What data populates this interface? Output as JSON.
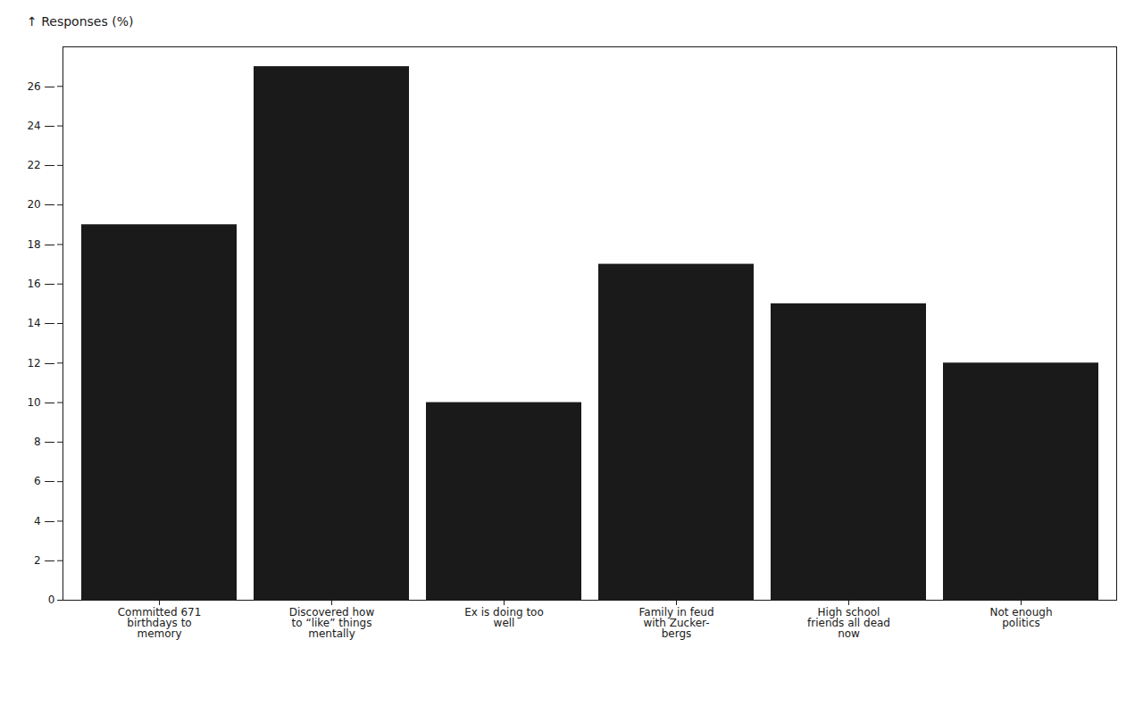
{
  "chart_data": {
    "type": "bar",
    "categories": [
      "Committed 671\nbirthdays to\nmemory",
      "Discovered how\nto “like” things\nmentally",
      "Ex is doing too\nwell",
      "Family in feud\nwith Zucker-\nbergs",
      "High school\nfriends all dead\nnow",
      "Not enough\npolitics"
    ],
    "values": [
      19,
      27,
      10,
      17,
      15,
      12
    ],
    "color": "#1a1a1a",
    "ylabel": "↑ Responses (%)",
    "ylim": [
      0,
      28
    ],
    "yticks": [
      0,
      {
        "value": 2,
        "label": "2 —"
      },
      {
        "value": 4,
        "label": "4 —"
      },
      {
        "value": 6,
        "label": "6 —"
      },
      {
        "value": 8,
        "label": "8 —"
      },
      {
        "value": 10,
        "label": "10 —"
      },
      {
        "value": 12,
        "label": "12 —"
      },
      {
        "value": 14,
        "label": "14 —"
      },
      {
        "value": 16,
        "label": "16 —"
      },
      {
        "value": 18,
        "label": "18 —"
      },
      {
        "value": 20,
        "label": "20 —"
      },
      {
        "value": 22,
        "label": "22 —"
      },
      {
        "value": 24,
        "label": "24 —"
      },
      {
        "value": 26,
        "label": "26 —"
      }
    ],
    "grid": false
  }
}
